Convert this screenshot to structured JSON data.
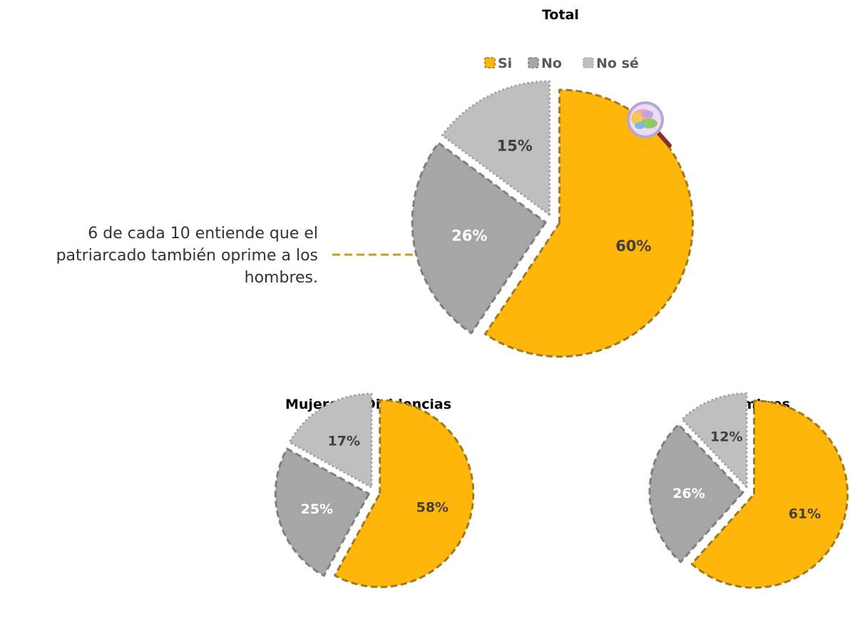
{
  "chart_data": [
    {
      "type": "pie",
      "title": "Total",
      "legend": {
        "placement": "top",
        "entries": [
          "Si",
          "No",
          "No sé"
        ]
      },
      "categories": [
        "Si",
        "No",
        "No sé"
      ],
      "values": [
        60,
        26,
        15
      ],
      "data_labels": [
        "60%",
        "26%",
        "15%"
      ]
    },
    {
      "type": "pie",
      "title": "Mujeres y Disidencias",
      "categories": [
        "Si",
        "No",
        "No sé"
      ],
      "values": [
        58,
        25,
        17
      ],
      "data_labels": [
        "58%",
        "25%",
        "17%"
      ]
    },
    {
      "type": "pie",
      "title": "Hombres",
      "categories": [
        "Si",
        "No",
        "No sé"
      ],
      "values": [
        61,
        26,
        12
      ],
      "data_labels": [
        "61%",
        "26%",
        "12%"
      ]
    }
  ],
  "annotation": {
    "text": "6 de cada 10 entiende que el patriarcado también oprime a los hombres.",
    "lines": [
      "6 de cada 10 entiende que el",
      "patriarcado también oprime a los",
      "hombres."
    ]
  },
  "colors": {
    "si": "#FFB60A",
    "si_border": "#A07A1E",
    "no": "#A6A6A6",
    "no_border": "#7F7F7F",
    "nose": "#BFBFBF",
    "nose_border": "#A6A6A6",
    "label_dark": "#404040",
    "label_light": "#ffffff",
    "connector": "#C99A2E"
  },
  "icon": "brain-magnifier-icon"
}
